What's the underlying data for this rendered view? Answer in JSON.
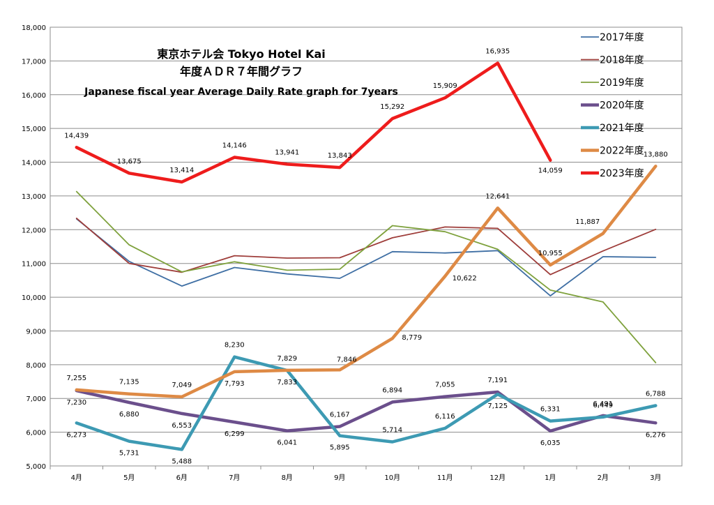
{
  "chart_data": {
    "type": "line",
    "title_lines": [
      "東京ホテル会 Tokyo Hotel Kai",
      "年度ＡＤＲ７年間グラフ"
    ],
    "subtitle": "Japanese fiscal year Average Daily Rate graph for 7years",
    "categories": [
      "4月",
      "5月",
      "6月",
      "7月",
      "8月",
      "9月",
      "10月",
      "11月",
      "12月",
      "1月",
      "2月",
      "3月"
    ],
    "ylim": [
      5000,
      18000
    ],
    "yticks": [
      "5,000",
      "6,000",
      "7,000",
      "8,000",
      "9,000",
      "10,000",
      "11,000",
      "12,000",
      "13,000",
      "14,000",
      "15,000",
      "16,000",
      "17,000",
      "18,000"
    ],
    "grid": "horizontal",
    "legend_position": "top-right",
    "series": [
      {
        "name": "2017年度",
        "color": "#3f6fa4",
        "width": 1.8,
        "values": [
          12320,
          11060,
          10330,
          10880,
          10690,
          10560,
          11350,
          11310,
          11380,
          10040,
          11200,
          11180
        ],
        "labels": []
      },
      {
        "name": "2018年度",
        "color": "#9e3d3a",
        "width": 1.8,
        "values": [
          12340,
          11000,
          10740,
          11230,
          11160,
          11170,
          11760,
          12080,
          12040,
          10670,
          11370,
          12010
        ],
        "labels": []
      },
      {
        "name": "2019年度",
        "color": "#7ea13c",
        "width": 1.8,
        "values": [
          13130,
          11550,
          10750,
          11050,
          10800,
          10830,
          12120,
          11940,
          11420,
          10210,
          9860,
          8060
        ],
        "labels": []
      },
      {
        "name": "2020年度",
        "color": "#6b4f8c",
        "width": 4.5,
        "values": [
          7230,
          6880,
          6553,
          6299,
          6041,
          6167,
          6894,
          7055,
          7191,
          6035,
          6491,
          6276
        ],
        "labels": [
          "7,230",
          "6,880",
          "6,553",
          "6,299",
          "6,041",
          "6,167",
          "6,894",
          "7,055",
          "7,191",
          "6,035",
          "6,491",
          "6,276"
        ]
      },
      {
        "name": "2021年度",
        "color": "#3d9ab3",
        "width": 4.5,
        "values": [
          6273,
          5731,
          5488,
          8230,
          7829,
          5895,
          5714,
          6116,
          7125,
          6331,
          6449,
          6788
        ],
        "labels": [
          "6,273",
          "5,731",
          "5,488",
          "8,230",
          "7,829",
          "5,895",
          "5,714",
          "6,116",
          "7,125",
          "6,331",
          "6,449",
          "6,788"
        ]
      },
      {
        "name": "2022年度",
        "color": "#de8a45",
        "width": 4.5,
        "values": [
          7255,
          7135,
          7049,
          7793,
          7833,
          7846,
          8779,
          10622,
          12641,
          10955,
          11887,
          13880
        ],
        "labels": [
          "7,255",
          "7,135",
          "7,049",
          "7,793",
          "7,833",
          "7,846",
          "8,779",
          "10,622",
          "12,641",
          "10,955",
          "11,887",
          "13,880"
        ]
      },
      {
        "name": "2023年度",
        "color": "#ee1c1c",
        "width": 4.5,
        "values": [
          14439,
          13675,
          13414,
          14146,
          13941,
          13843,
          15292,
          15909,
          16935,
          14059,
          null,
          null
        ],
        "labels": [
          "14,439",
          "13,675",
          "13,414",
          "14,146",
          "13,941",
          "13,843",
          "15,292",
          "15,909",
          "16,935",
          "14,059",
          "",
          ""
        ]
      }
    ]
  }
}
